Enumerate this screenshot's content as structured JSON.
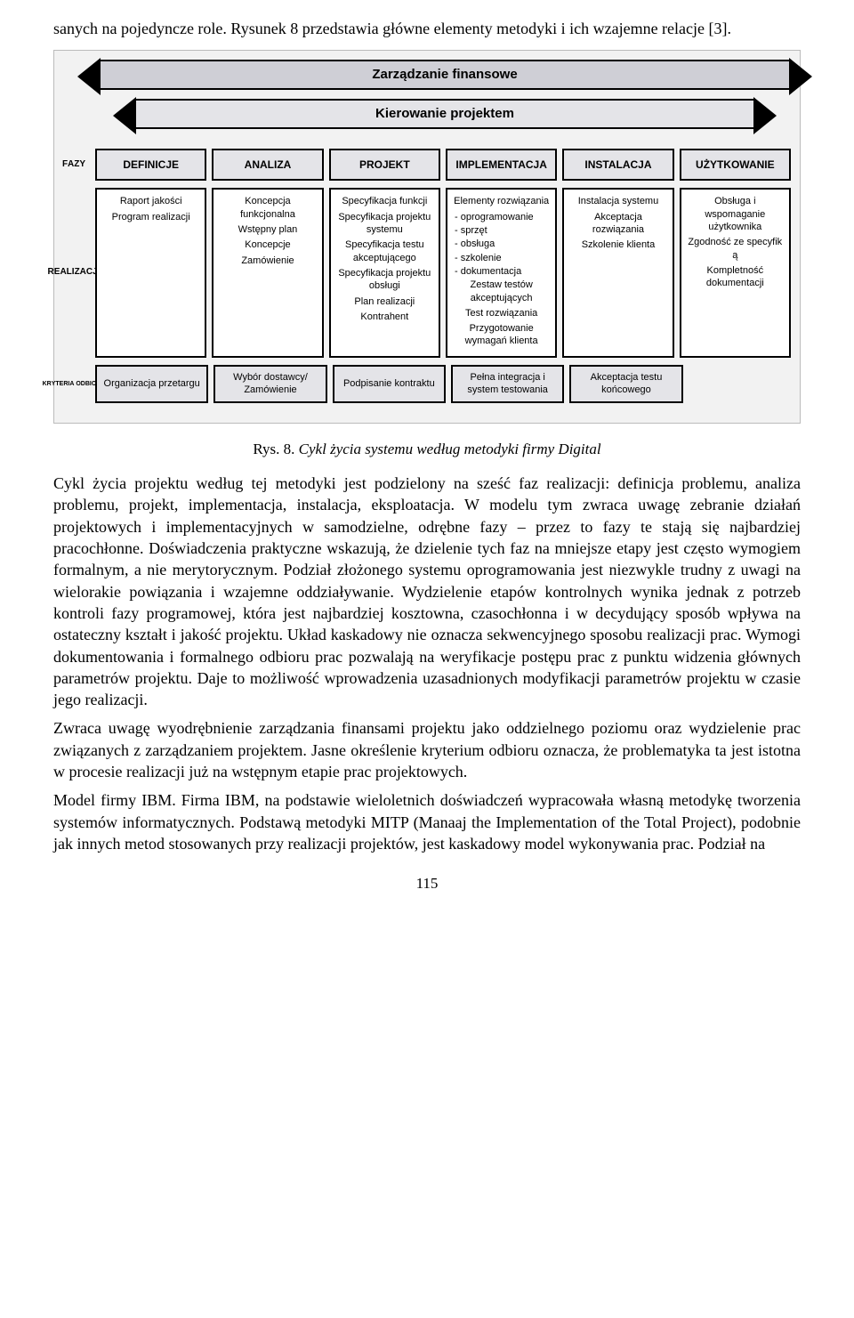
{
  "intro": "sanych na pojedyncze role. Rysunek 8 przedstawia główne elementy metodyki i ich wzajemne relacje [3].",
  "diagram": {
    "top_arrow1": "Zarządzanie finansowe",
    "top_arrow2": "Kierowanie projektem",
    "row_labels": {
      "fazy": "F\nA\nZ\nY",
      "realizacji": "R\nE\nA\nL\nI\nZ\nA\nC\nJ\nI",
      "kryteria": "KRYTERIA ODBIORU"
    },
    "colors": {
      "diagram_bg": "#f2f2f2",
      "box_bg_dark": "#e4e4e8",
      "box_bg_light": "#ffffff",
      "arrow_fill": "#cfcfd6",
      "border": "#000000"
    },
    "phases": [
      "DEFINICJE",
      "ANALIZA",
      "PROJEKT",
      "IMPLEMENTACJA",
      "INSTALACJA",
      "UŻYTKOWANIE"
    ],
    "realizations": [
      [
        "Raport jakości",
        "Program realizacji"
      ],
      [
        "Koncepcja funkcjonalna",
        "Wstępny plan",
        "Koncepcje",
        "Zamówienie"
      ],
      [
        "Specyfikacja funkcji",
        "Specyfikacja projektu systemu",
        "Specyfikacja testu akceptującego",
        "Specyfikacja projektu obsługi",
        "Plan realizacji",
        "Kontrahent"
      ],
      [
        {
          "t": "Elementy rozwiązania",
          "plain": true
        },
        {
          "t": "oprogramowanie",
          "bullet": true
        },
        {
          "t": "sprzęt",
          "bullet": true
        },
        {
          "t": "obsługa",
          "bullet": true
        },
        {
          "t": "szkolenie",
          "bullet": true
        },
        {
          "t": "dokumentacja",
          "bullet": true
        },
        {
          "t": "Zestaw testów akceptujących",
          "plain": true
        },
        {
          "t": "Test rozwiązania",
          "plain": true
        },
        {
          "t": "Przygotowanie wymagań klienta",
          "plain": true
        }
      ],
      [
        "Instalacja systemu",
        "Akceptacja rozwiązania",
        "Szkolenie klienta"
      ],
      [
        "Obsługa i wspomaganie użytkownika",
        "Zgodność ze specyfik ą",
        "Kompletność dokumentacji"
      ]
    ],
    "criteria": [
      "Organizacja przetargu",
      "Wybór dostawcy/ Zamówienie",
      "Podpisanie kontraktu",
      "Pełna integracja i system testowania",
      "Akceptacja testu końcowego",
      null
    ]
  },
  "caption_prefix": "Rys. 8.",
  "caption_text": "Cykl życia systemu według metodyki firmy Digital",
  "paragraphs": [
    "Cykl życia projektu według tej metodyki jest podzielony na sześć faz realizacji: definicja problemu, analiza problemu, projekt, implementacja, instalacja, eksploatacja. W modelu tym zwraca uwagę zebranie działań projektowych i implementacyjnych w samodzielne, odrębne fazy – przez to fazy te stają się najbardziej pracochłonne. Doświadczenia praktyczne wskazują, że dzielenie tych faz na mniejsze etapy jest często wymogiem formalnym, a nie merytorycznym. Podział złożonego systemu oprogramowania jest niezwykle trudny z uwagi na wielorakie powiązania i wzajemne oddziaływanie. Wydzielenie etapów kontrolnych wynika jednak z potrzeb kontroli fazy programowej, która jest najbardziej kosztowna, czasochłonna i w decydujący sposób wpływa na ostateczny kształt i jakość projektu. Układ kaskadowy nie oznacza sekwencyjnego sposobu realizacji prac. Wymogi dokumentowania i formalnego odbioru prac pozwalają na weryfikacje postępu prac z punktu widzenia głównych parametrów projektu. Daje to możliwość wprowadzenia uzasadnionych modyfikacji parametrów projektu w czasie jego realizacji.",
    "Zwraca uwagę wyodrębnienie zarządzania finansami projektu jako oddzielnego poziomu oraz wydzielenie prac związanych z zarządzaniem projektem. Jasne określenie kryterium odbioru oznacza, że problematyka ta jest istotna w procesie realizacji już na wstępnym etapie prac projektowych.",
    "Model firmy IBM. Firma IBM, na podstawie wieloletnich doświadczeń wypracowała własną metodykę tworzenia systemów informatycznych. Podstawą metodyki MITP (Manaaj the Implementation of the Total Project), podobnie jak innych metod stosowanych przy realizacji projektów, jest kaskadowy model wykonywania prac. Podział na"
  ],
  "page_number": "115"
}
